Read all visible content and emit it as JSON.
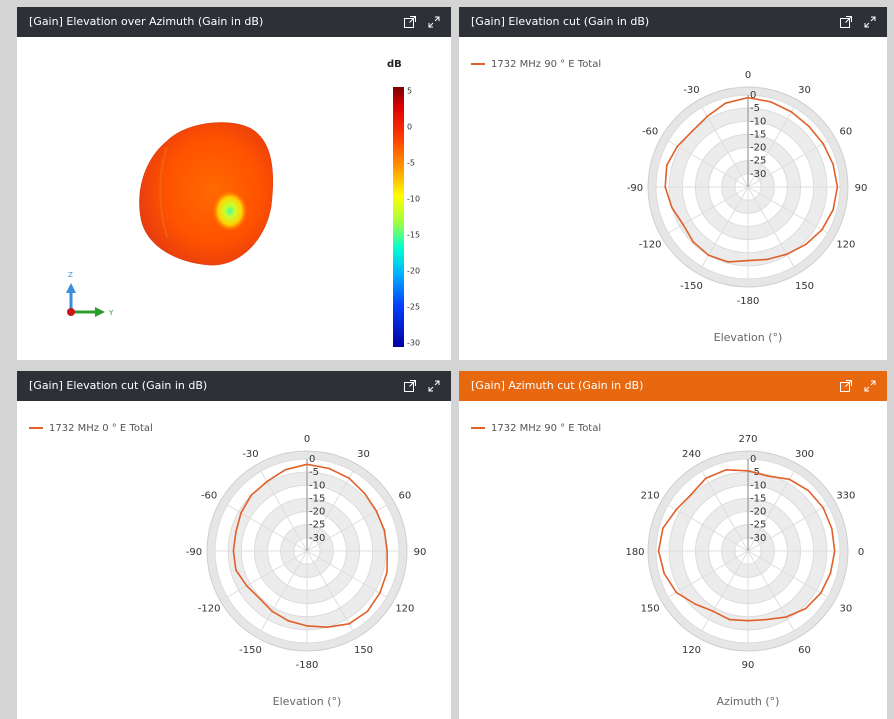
{
  "panels": {
    "p1": {
      "title": "[Gain] Elevation over Azimuth (Gain in dB)"
    },
    "p2": {
      "title": "[Gain] Elevation cut (Gain in dB)",
      "legend": "1732 MHz 90 ° E Total",
      "axis_title": "Elevation (°)"
    },
    "p3": {
      "title": "[Gain] Elevation cut (Gain in dB)",
      "legend": "1732 MHz 0 ° E Total",
      "axis_title": "Elevation (°)"
    },
    "p4": {
      "title": "[Gain] Azimuth cut (Gain in dB)",
      "legend": "1732 MHz 90 ° E Total",
      "axis_title": "Azimuth (°)"
    }
  },
  "colorbar": {
    "title": "dB",
    "ticks": [
      "5",
      "0",
      "-5",
      "-10",
      "-15",
      "-20",
      "-25",
      "-30"
    ]
  },
  "axes_triad": {
    "z": "Z",
    "y": "Y"
  },
  "icons": {
    "popout": "popout-icon",
    "expand": "expand-icon"
  },
  "colors": {
    "header_bg": "#2d3137",
    "active_header_bg": "#e8680f",
    "trace": "#e0602a"
  },
  "chart_data": [
    {
      "type": "polar",
      "title": "[Gain] Elevation cut (Gain in dB)",
      "angle_label": "Elevation (°)",
      "angle_ticks": [
        "0",
        "30",
        "60",
        "90",
        "120",
        "150",
        "-180",
        "-150",
        "-120",
        "-90",
        "-60",
        "-30"
      ],
      "radial_ticks": [
        "0",
        "-5",
        "-10",
        "-15",
        "-20",
        "-25",
        "-30"
      ],
      "rlim": [
        -35,
        0
      ],
      "series": [
        {
          "name": "1732 MHz 90 ° E Total",
          "angles": [
            0,
            15,
            30,
            45,
            60,
            75,
            90,
            105,
            120,
            135,
            150,
            165,
            180,
            195,
            210,
            225,
            240,
            255,
            270,
            285,
            300,
            315,
            330,
            345
          ],
          "values": [
            -1,
            -1.5,
            -2,
            -2.3,
            -2,
            -1.5,
            -1,
            -1.5,
            -2.5,
            -4,
            -5.5,
            -6.5,
            -7,
            -5.5,
            -5,
            -5.5,
            -6.5,
            -5,
            -3.5,
            -3,
            -4,
            -5,
            -4,
            -2
          ]
        }
      ]
    },
    {
      "type": "polar",
      "title": "[Gain] Elevation cut (Gain in dB)",
      "angle_label": "Elevation (°)",
      "angle_ticks": [
        "0",
        "30",
        "60",
        "90",
        "120",
        "150",
        "-180",
        "-150",
        "-120",
        "-90",
        "-60",
        "-30"
      ],
      "radial_ticks": [
        "0",
        "-5",
        "-10",
        "-15",
        "-20",
        "-25",
        "-30"
      ],
      "rlim": [
        -35,
        0
      ],
      "series": [
        {
          "name": "1732 MHz 0 ° E Total",
          "angles": [
            0,
            15,
            30,
            45,
            60,
            75,
            90,
            105,
            120,
            135,
            150,
            165,
            180,
            195,
            210,
            225,
            240,
            255,
            270,
            285,
            300,
            315,
            330,
            345
          ],
          "values": [
            -2,
            -2.5,
            -3,
            -4,
            -4.5,
            -4.5,
            -4.5,
            -3.5,
            -3,
            -2.5,
            -3,
            -5,
            -6.5,
            -7.5,
            -8.5,
            -9.5,
            -8.5,
            -7,
            -7,
            -7,
            -6,
            -5,
            -4.5,
            -3
          ]
        }
      ]
    },
    {
      "type": "polar",
      "title": "[Gain] Azimuth cut (Gain in dB)",
      "angle_label": "Azimuth (°)",
      "angle_ticks": [
        "270",
        "300",
        "330",
        "0",
        "30",
        "60",
        "90",
        "120",
        "150",
        "180",
        "210",
        "240"
      ],
      "radial_ticks": [
        "0",
        "-5",
        "-10",
        "-15",
        "-20",
        "-25",
        "-30"
      ],
      "rlim": [
        -35,
        0
      ],
      "series": [
        {
          "name": "1732 MHz 90 ° E Total",
          "angles": [
            0,
            15,
            30,
            45,
            60,
            75,
            90,
            105,
            120,
            135,
            150,
            165,
            180,
            195,
            210,
            225,
            240,
            255,
            270,
            285,
            300,
            315,
            330,
            345
          ],
          "values": [
            -4.5,
            -5.5,
            -3.5,
            -2.5,
            -2,
            -2,
            -2,
            -2.5,
            -3,
            -4,
            -6,
            -8,
            -8.5,
            -8,
            -8.5,
            -6.5,
            -3.5,
            -2,
            -1,
            -1.5,
            -3.5,
            -4.5,
            -3,
            -3
          ]
        }
      ]
    }
  ]
}
